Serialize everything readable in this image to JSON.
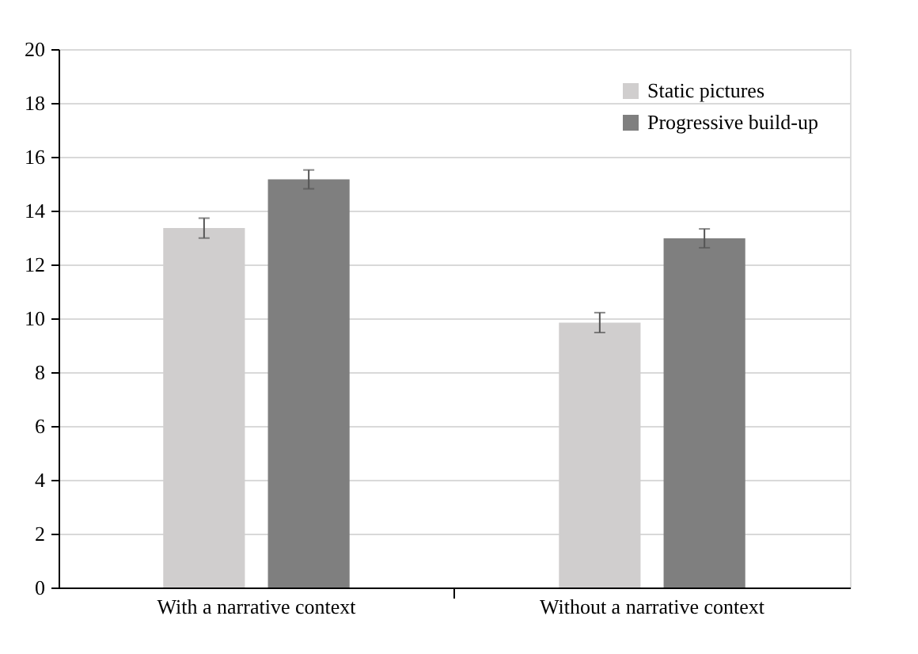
{
  "chart_data": {
    "type": "bar",
    "categories": [
      "With a narrative context",
      "Without a narrative context"
    ],
    "series": [
      {
        "name": "Static pictures",
        "color": "#d0cece",
        "values": [
          13.35,
          9.84
        ],
        "errors": [
          0.37,
          0.37
        ]
      },
      {
        "name": "Progressive build-up",
        "color": "#7f7f7f",
        "values": [
          15.16,
          12.97
        ],
        "errors": [
          0.35,
          0.35
        ]
      }
    ],
    "ylim": [
      0,
      20
    ],
    "yticks": [
      0,
      2,
      4,
      6,
      8,
      10,
      12,
      14,
      16,
      18,
      20
    ],
    "grid": "y",
    "legend": "top right"
  }
}
